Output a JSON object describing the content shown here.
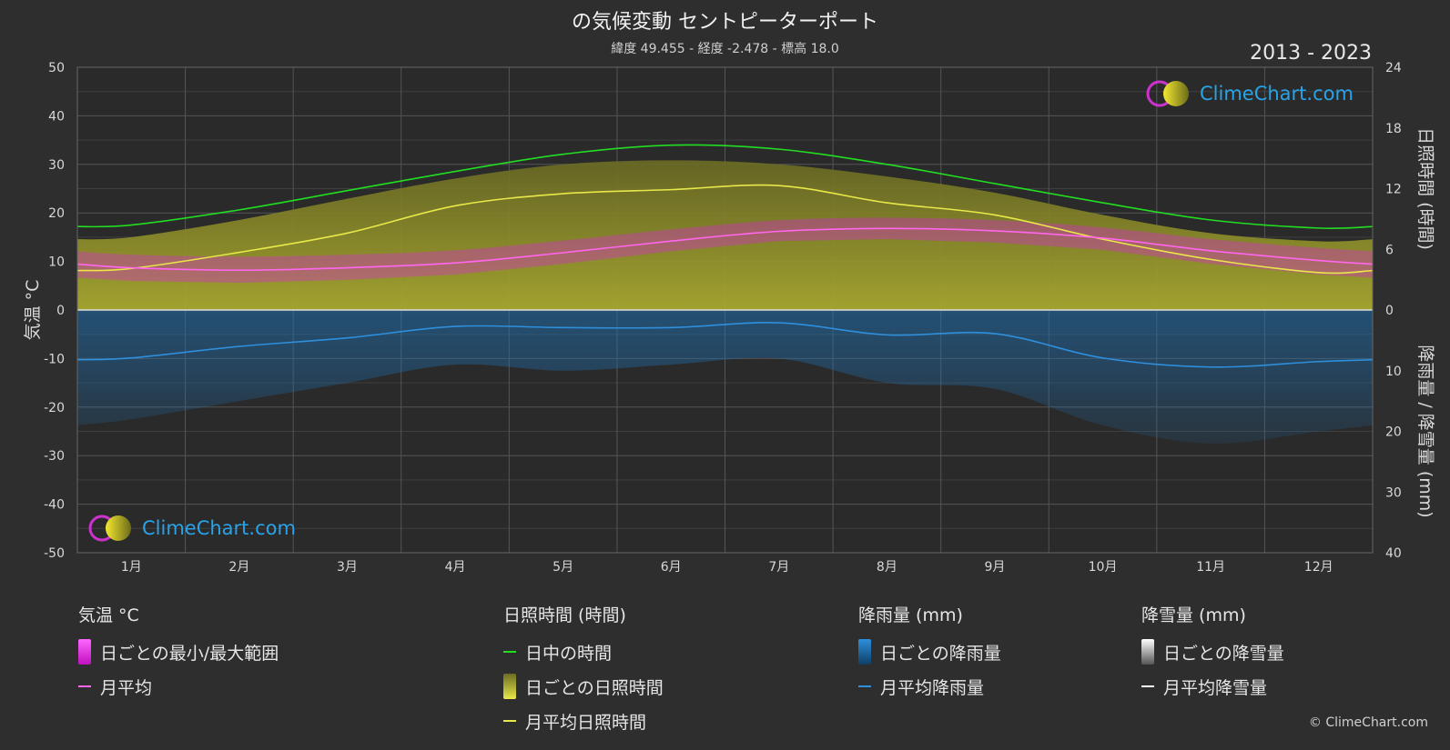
{
  "header": {
    "title": "の気候変動 セントピーターポート",
    "subtitle": "緯度 49.455 - 経度 -2.478 - 標高 18.0",
    "years": "2013 - 2023"
  },
  "branding": {
    "logo_text": "ClimeChart.com",
    "copyright": "© ClimeChart.com"
  },
  "colors": {
    "background": "#2e2e2e",
    "daylight": "#22dd22",
    "sunshine_line": "#e8e84a",
    "sunshine_fill": "#b5b52a",
    "temp_line": "#ff66ee",
    "temp_range": "#e020e0",
    "rain_line": "#2e8fdc",
    "rain_bar": "#1f6fb0",
    "snow_line": "#ffffff"
  },
  "chart_data": {
    "type": "line",
    "categories": [
      "1月",
      "2月",
      "3月",
      "4月",
      "5月",
      "6月",
      "7月",
      "8月",
      "9月",
      "10月",
      "11月",
      "12月"
    ],
    "left_axis": {
      "label": "気温 °C",
      "ylim": [
        -50,
        50
      ],
      "ticks": [
        "50",
        "40",
        "30",
        "20",
        "10",
        "0",
        "-10",
        "-20",
        "-30",
        "-40",
        "-50"
      ]
    },
    "right_axis_top": {
      "label": "日照時間 (時間)",
      "ylim": [
        0,
        24
      ],
      "ticks": [
        "24",
        "18",
        "12",
        "6",
        "0"
      ]
    },
    "right_axis_bottom": {
      "label": "降雨量 / 降雪量 (mm)",
      "ylim": [
        0,
        40
      ],
      "ticks": [
        "0",
        "10",
        "20",
        "30",
        "40"
      ]
    },
    "grid": true,
    "series": [
      {
        "name": "日中の時間",
        "axis": "sunshine",
        "values": [
          8.4,
          9.9,
          11.8,
          13.7,
          15.4,
          16.3,
          15.9,
          14.4,
          12.5,
          10.6,
          8.9,
          8.1
        ]
      },
      {
        "name": "月平均日照時間",
        "axis": "sunshine",
        "values": [
          4.1,
          5.7,
          7.6,
          10.3,
          11.5,
          11.9,
          12.3,
          10.6,
          9.4,
          7.0,
          5.0,
          3.7
        ]
      },
      {
        "name": "月平均",
        "axis": "temperature",
        "values": [
          8.7,
          8.2,
          8.7,
          9.7,
          11.8,
          14.2,
          16.2,
          16.8,
          16.3,
          14.8,
          12.2,
          10.2
        ]
      },
      {
        "name": "月平均降雨量",
        "axis": "precipitation",
        "values": [
          7.9,
          6.0,
          4.6,
          2.7,
          2.9,
          2.9,
          2.1,
          4.1,
          3.9,
          7.9,
          9.4,
          8.5
        ]
      },
      {
        "name": "月平均降雪量",
        "axis": "precipitation",
        "values": [
          0,
          0,
          0,
          0,
          0,
          0,
          0,
          0,
          0,
          0,
          0,
          0
        ]
      }
    ],
    "daily_temperature_range": {
      "name": "日ごとの最小/最大範囲",
      "min": [
        6.0,
        5.6,
        6.2,
        7.3,
        9.5,
        12.1,
        14.2,
        14.6,
        13.9,
        12.4,
        9.5,
        7.3
      ],
      "max": [
        11.4,
        11.0,
        11.4,
        12.3,
        14.3,
        16.6,
        18.5,
        19.0,
        18.5,
        17.0,
        14.6,
        12.8
      ]
    },
    "daily_sunshine_envelope": {
      "name": "日ごとの日照時間",
      "values": [
        7.2,
        8.9,
        11.0,
        13.0,
        14.4,
        14.8,
        14.4,
        13.2,
        11.6,
        9.4,
        7.6,
        6.8
      ]
    },
    "daily_rain_envelope": {
      "name": "日ごとの降雨量",
      "values": [
        18,
        15,
        12,
        9,
        10,
        9,
        8,
        12,
        13,
        19,
        22,
        20
      ]
    }
  },
  "legend": {
    "temperature": {
      "title": "気温 °C",
      "items": [
        "日ごとの最小/最大範囲",
        "月平均"
      ]
    },
    "sunshine": {
      "title": "日照時間 (時間)",
      "items": [
        "日中の時間",
        "日ごとの日照時間",
        "月平均日照時間"
      ]
    },
    "rain": {
      "title": "降雨量 (mm)",
      "items": [
        "日ごとの降雨量",
        "月平均降雨量"
      ]
    },
    "snow": {
      "title": "降雪量 (mm)",
      "items": [
        "日ごとの降雪量",
        "月平均降雪量"
      ]
    }
  }
}
